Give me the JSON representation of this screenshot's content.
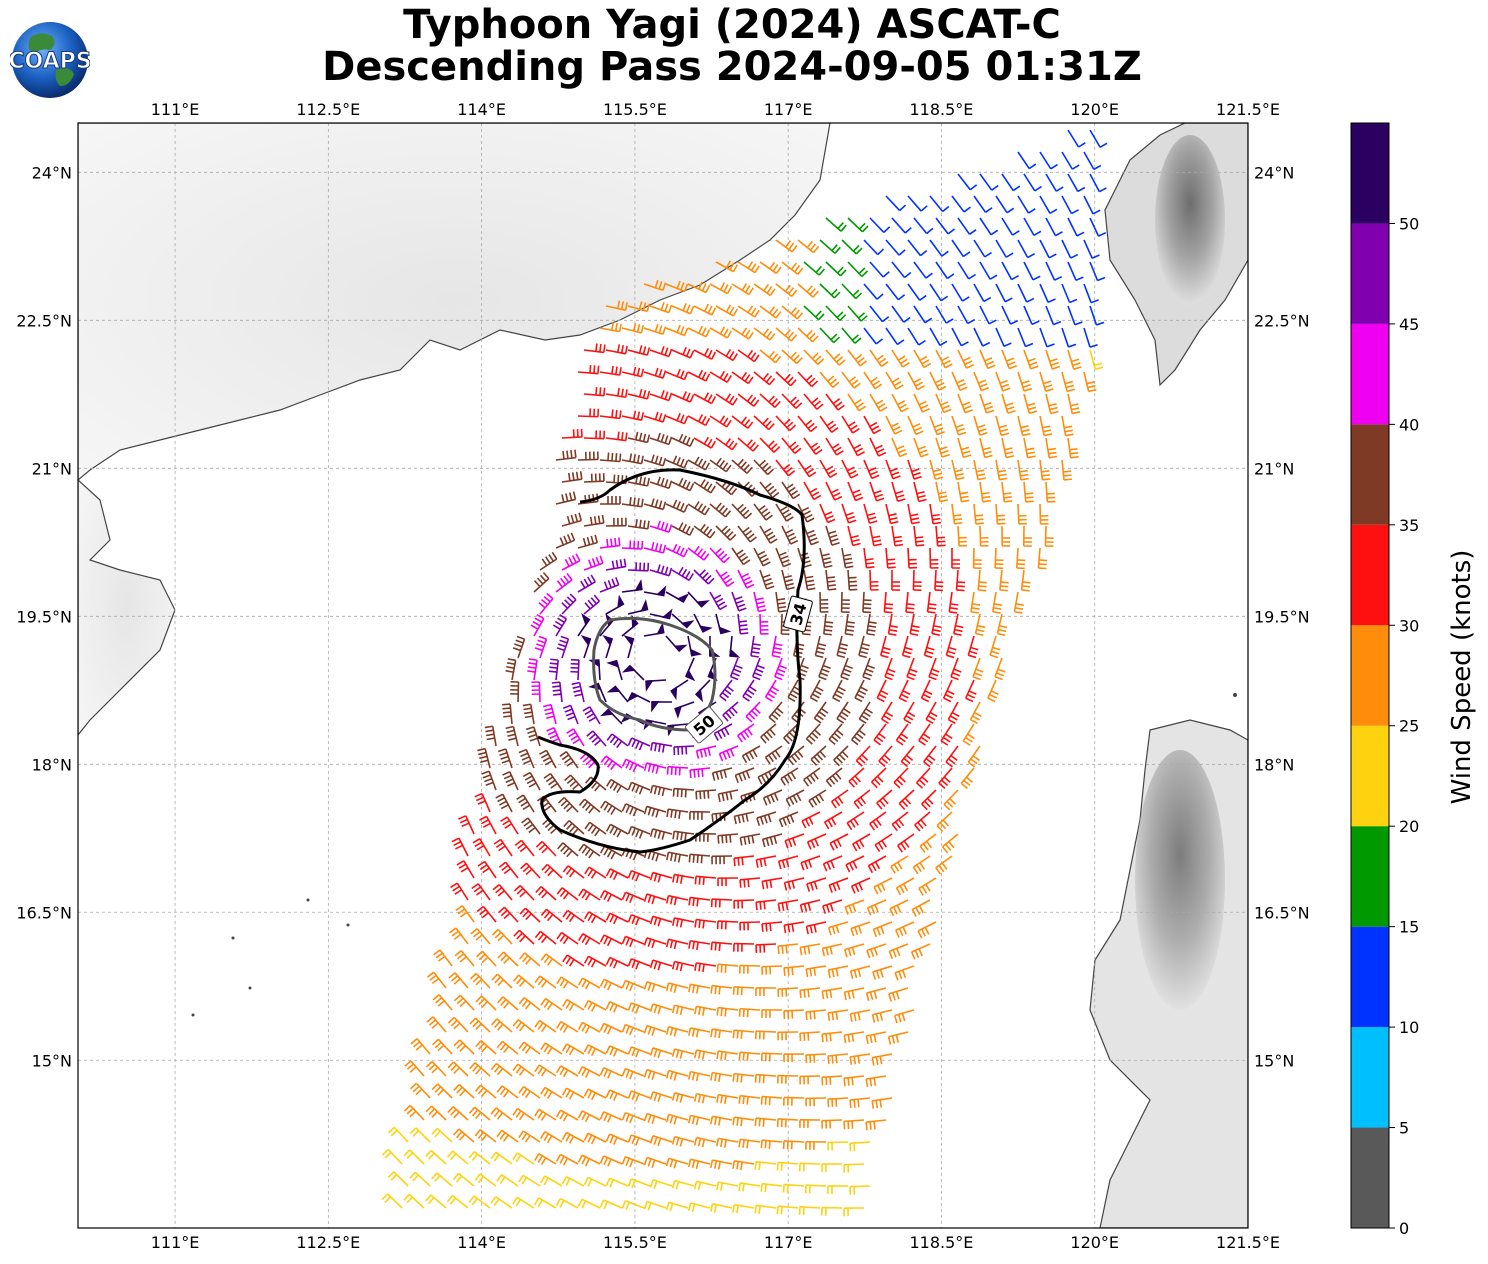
{
  "title": {
    "line1": "Typhoon Yagi (2024) ASCAT-C",
    "line2": "Descending Pass 2024-09-05 01:31Z"
  },
  "logo": {
    "text": "COAPS",
    "icon": "globe-logo"
  },
  "map": {
    "lon_range": [
      110.05,
      121.5
    ],
    "lat_range": [
      13.3,
      24.5
    ],
    "lon_ticks": [
      "111°E",
      "112.5°E",
      "114°E",
      "115.5°E",
      "117°E",
      "118.5°E",
      "120°E",
      "121.5°E"
    ],
    "lon_tick_values": [
      111,
      112.5,
      114,
      115.5,
      117,
      118.5,
      120,
      121.5
    ],
    "lat_ticks": [
      "24°N",
      "22.5°N",
      "21°N",
      "19.5°N",
      "18°N",
      "16.5°N",
      "15°N"
    ],
    "lat_tick_values": [
      24,
      22.5,
      21,
      19.5,
      18,
      16.5,
      15
    ],
    "grid": true,
    "contours": [
      {
        "label": "34",
        "units": "knots",
        "color": "#000000"
      },
      {
        "label": "50",
        "units": "knots",
        "color": "#555555"
      }
    ],
    "storm_center": {
      "lon": 115.7,
      "lat": 19.1
    }
  },
  "colorbar": {
    "label": "Wind Speed (knots)",
    "tick_labels": [
      "0",
      "5",
      "10",
      "15",
      "20",
      "25",
      "30",
      "35",
      "40",
      "45",
      "50"
    ],
    "bins": [
      {
        "min": 0,
        "max": 5,
        "color": "#595959"
      },
      {
        "min": 5,
        "max": 10,
        "color": "#00bfff"
      },
      {
        "min": 10,
        "max": 15,
        "color": "#0033ff"
      },
      {
        "min": 15,
        "max": 20,
        "color": "#009900"
      },
      {
        "min": 20,
        "max": 25,
        "color": "#ffd20f"
      },
      {
        "min": 25,
        "max": 30,
        "color": "#ff8c0a"
      },
      {
        "min": 30,
        "max": 35,
        "color": "#ff1010"
      },
      {
        "min": 35,
        "max": 40,
        "color": "#7f3a25"
      },
      {
        "min": 40,
        "max": 45,
        "color": "#f000f0"
      },
      {
        "min": 45,
        "max": 50,
        "color": "#8000b0"
      },
      {
        "min": 50,
        "max": 55,
        "color": "#2a0060"
      }
    ]
  }
}
